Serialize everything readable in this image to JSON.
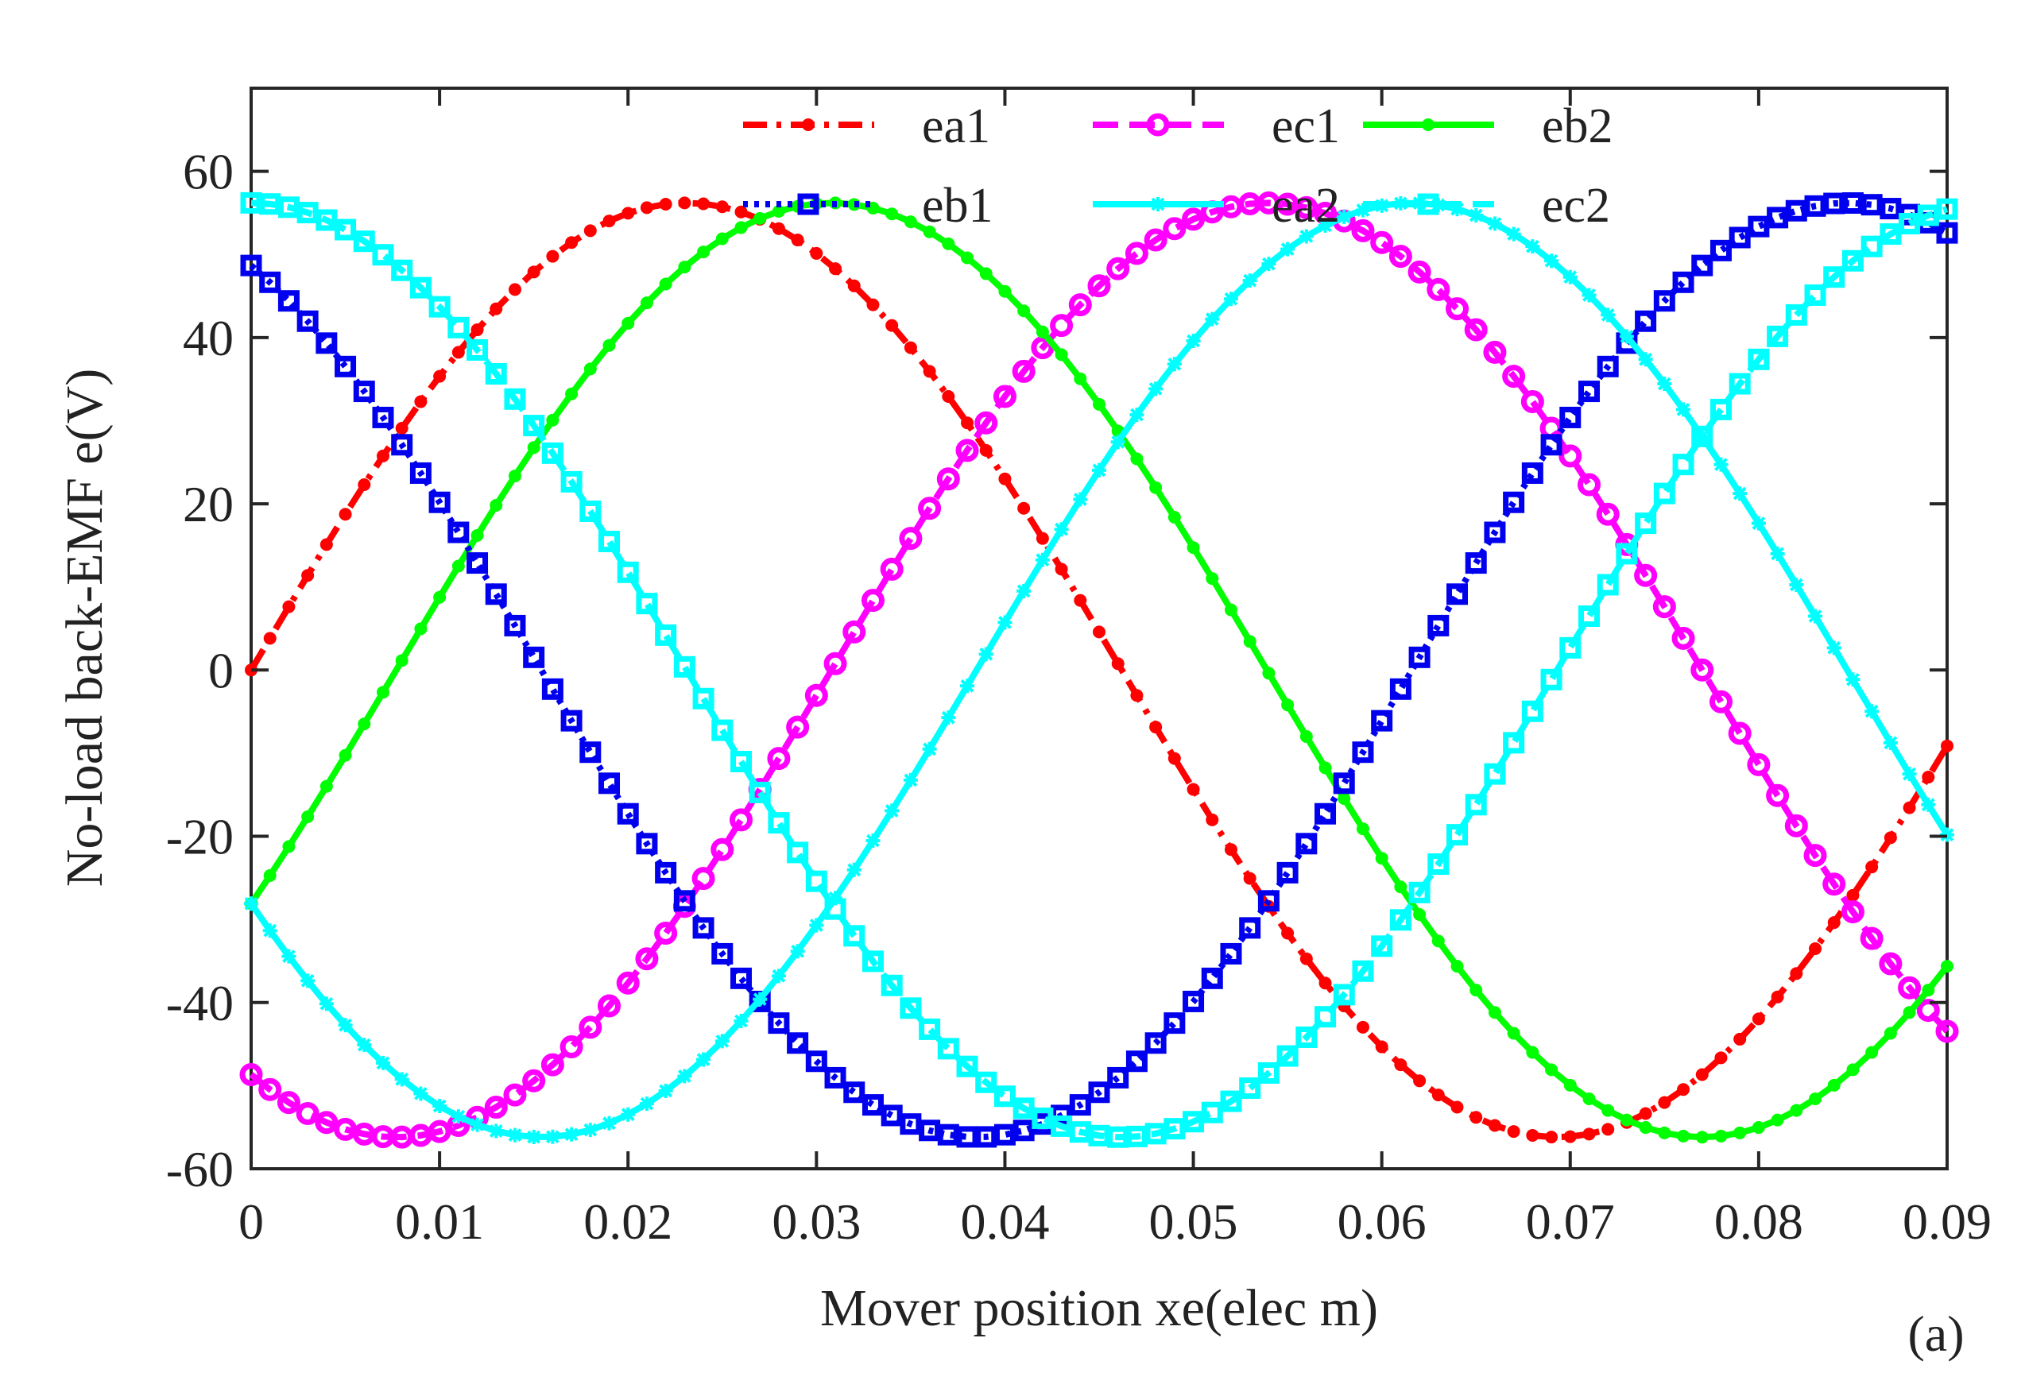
{
  "chart_data": {
    "type": "line",
    "title": "",
    "xlabel": "Mover position xe(elec m)",
    "ylabel": "No-load back-EMF e(V)",
    "xlim": [
      0,
      0.09
    ],
    "ylim": [
      -60,
      70
    ],
    "xticks": [
      0,
      0.01,
      0.02,
      0.03,
      0.04,
      0.05,
      0.06,
      0.07,
      0.08,
      0.09
    ],
    "xtick_labels": [
      "0",
      "0.01",
      "0.02",
      "0.03",
      "0.04",
      "0.05",
      "0.06",
      "0.07",
      "0.08",
      "0.09"
    ],
    "yticks": [
      -60,
      -40,
      -20,
      0,
      20,
      40,
      60
    ],
    "ytick_labels": [
      "-60",
      "-40",
      "-20",
      "0",
      "20",
      "40",
      "60"
    ],
    "grid": false,
    "legend_position": "top",
    "panel_label": "(a)",
    "period": 0.0924,
    "amplitude": 56.2,
    "x_start": 0,
    "x_end": 0.09,
    "num_points": 91,
    "series": [
      {
        "name": "ea1",
        "color": "#ff0000",
        "line": "dashdot",
        "marker": "dot",
        "phase_deg": 0
      },
      {
        "name": "ec1",
        "color": "#ff00ff",
        "line": "dashed",
        "marker": "circle",
        "phase_deg": -120
      },
      {
        "name": "eb2",
        "color": "#00ff00",
        "line": "solid",
        "marker": "dot",
        "phase_deg": -30
      },
      {
        "name": "eb1",
        "color": "#0000ee",
        "line": "dotted",
        "marker": "square",
        "phase_deg": 120
      },
      {
        "name": "ea2",
        "color": "#00ffff",
        "line": "solid",
        "marker": "star",
        "phase_deg": -150
      },
      {
        "name": "ec2",
        "color": "#00ffff",
        "line": "dashed",
        "marker": "square",
        "phase_deg": 90
      }
    ]
  }
}
